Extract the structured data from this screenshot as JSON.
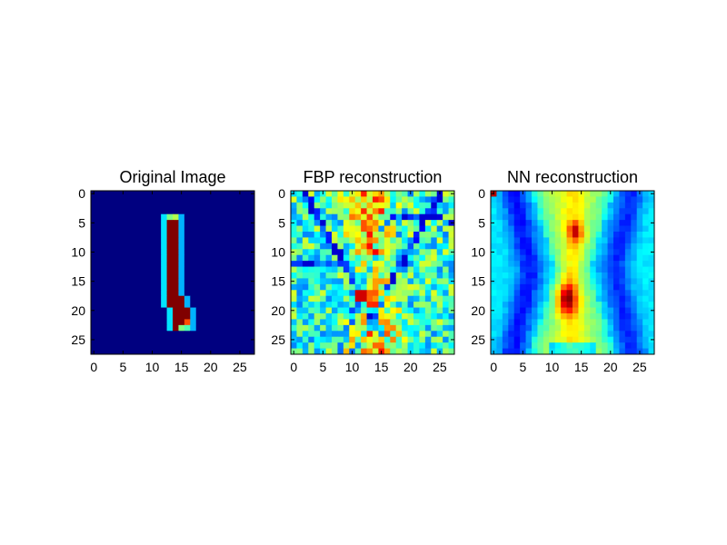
{
  "chart_data": [
    {
      "type": "heatmap",
      "title": "Original Image",
      "colormap": "jet",
      "grid": false,
      "xlim": [
        -0.5,
        27.5
      ],
      "ylim": [
        27.5,
        -0.5
      ],
      "x_ticks": [
        "0",
        "5",
        "10",
        "15",
        "20",
        "25"
      ],
      "y_ticks": [
        "0",
        "5",
        "10",
        "15",
        "20",
        "25"
      ],
      "x_tick_values": [
        0,
        5,
        10,
        15,
        20,
        25
      ],
      "y_tick_values": [
        0,
        5,
        10,
        15,
        20,
        25
      ],
      "rows": 28,
      "cols": 28,
      "value_range": [
        0,
        1
      ],
      "description": "Handwritten digit one: a thin vertical stroke around columns 13-15 from row 4 to row 23, bending slightly right at the bottom; background at minimum.",
      "strokes": [
        {
          "row": 4,
          "col_start": 13,
          "col_end": 14,
          "value": 0.55
        },
        {
          "row": 5,
          "col_start": 13,
          "col_end": 14,
          "value": 0.9
        },
        {
          "row": 10,
          "col_start": 13,
          "col_end": 15,
          "value": 1.0
        },
        {
          "row": 15,
          "col_start": 13,
          "col_end": 15,
          "value": 1.0
        },
        {
          "row": 19,
          "col_start": 13,
          "col_end": 16,
          "value": 1.0
        },
        {
          "row": 22,
          "col_start": 14,
          "col_end": 16,
          "value": 0.85
        },
        {
          "row": 23,
          "col_start": 15,
          "col_end": 16,
          "value": 0.55
        }
      ]
    },
    {
      "type": "heatmap",
      "title": "FBP reconstruction",
      "colormap": "jet",
      "grid": false,
      "xlim": [
        -0.5,
        27.5
      ],
      "ylim": [
        27.5,
        -0.5
      ],
      "x_ticks": [
        "0",
        "5",
        "10",
        "15",
        "20",
        "25"
      ],
      "y_ticks": [
        "0",
        "5",
        "10",
        "15",
        "20",
        "25"
      ],
      "x_tick_values": [
        0,
        5,
        10,
        15,
        20,
        25
      ],
      "y_tick_values": [
        0,
        5,
        10,
        15,
        20,
        25
      ],
      "rows": 28,
      "cols": 28,
      "value_range": [
        0,
        1
      ],
      "description": "Noisy filtered back-projection: mid-range cyan/green background crossed by dark-blue streaks, with a brighter yellow-red hourglass band through the centre columns 10-18."
    },
    {
      "type": "heatmap",
      "title": "NN reconstruction",
      "colormap": "jet",
      "grid": false,
      "xlim": [
        -0.5,
        27.5
      ],
      "ylim": [
        27.5,
        -0.5
      ],
      "x_ticks": [
        "0",
        "5",
        "10",
        "15",
        "20",
        "25"
      ],
      "y_ticks": [
        "0",
        "5",
        "10",
        "15",
        "20",
        "25"
      ],
      "x_tick_values": [
        0,
        5,
        10,
        15,
        20,
        25
      ],
      "y_tick_values": [
        0,
        5,
        10,
        15,
        20,
        25
      ],
      "rows": 28,
      "cols": 28,
      "value_range": [
        0,
        1
      ],
      "description": "Smooth reconstruction: blue X-shaped lobes on either side, green-yellow hourglass in the centre, peak red around row 18 column 13 and a secondary orange blob around rows 5-8 column 14."
    }
  ]
}
